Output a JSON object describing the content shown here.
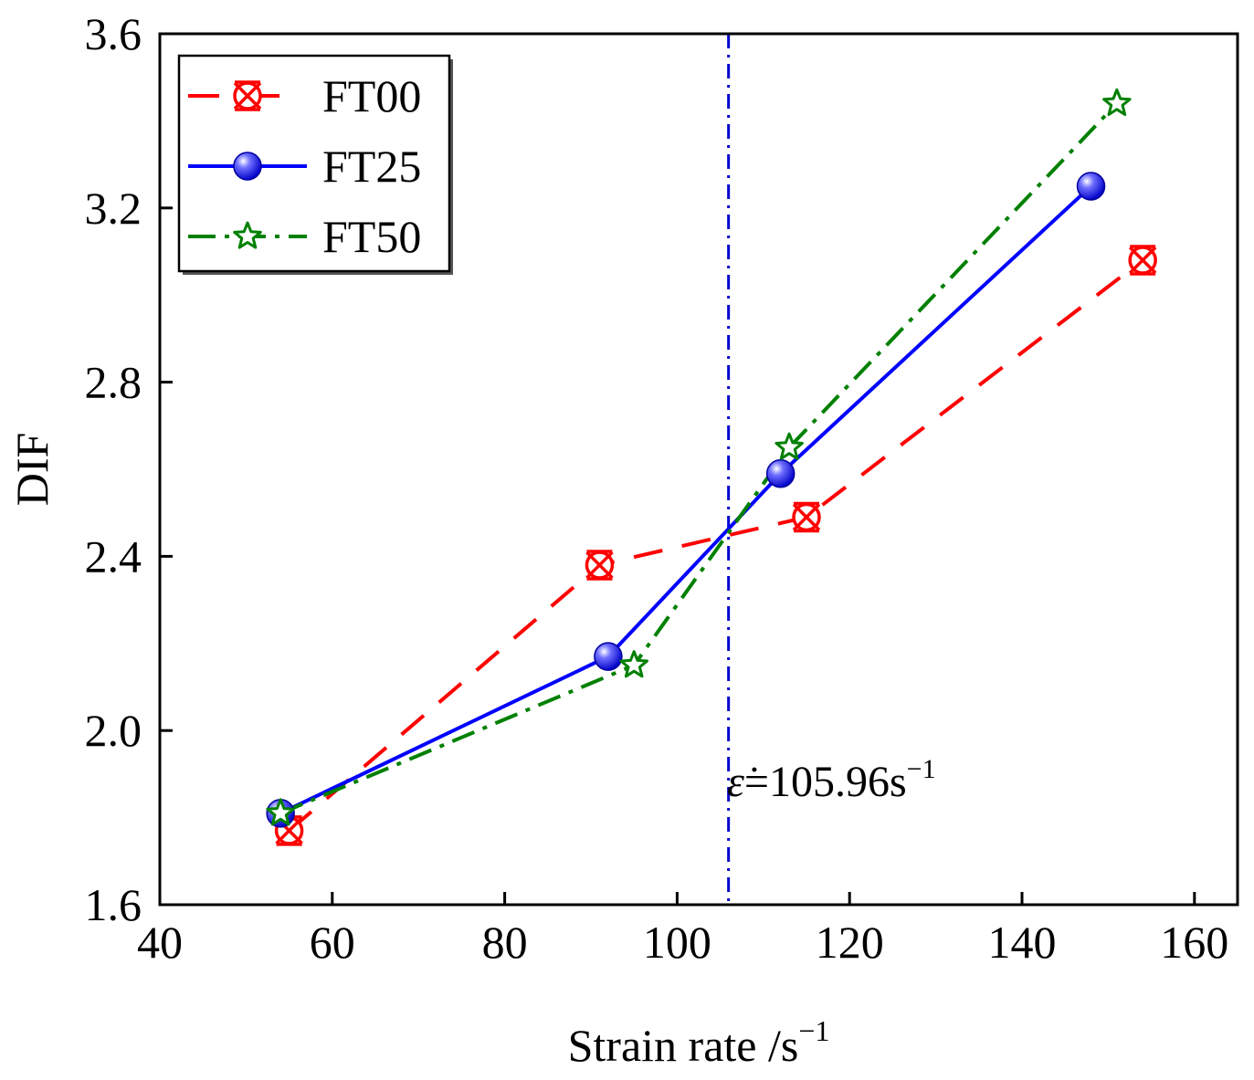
{
  "chart_data": {
    "type": "line",
    "xlabel": "Strain rate /s",
    "xlabel_sup": "−1",
    "ylabel": "DIF",
    "xlim": [
      40,
      165
    ],
    "ylim": [
      1.6,
      3.6
    ],
    "xticks": [
      40,
      60,
      80,
      100,
      120,
      140,
      160
    ],
    "yticks": [
      1.6,
      2.0,
      2.4,
      2.8,
      3.2,
      3.6
    ],
    "xtick_labels": [
      "40",
      "60",
      "80",
      "100",
      "120",
      "140",
      "160"
    ],
    "ytick_labels": [
      "1.6",
      "2.0",
      "2.4",
      "2.8",
      "3.2",
      "3.6"
    ],
    "grid": false,
    "legend_position": "top-left",
    "series": [
      {
        "name": "FT00",
        "color": "#ff0000",
        "line": "dashed",
        "marker": "circle-x",
        "x": [
          55,
          91,
          115,
          154
        ],
        "y": [
          1.77,
          2.38,
          2.49,
          3.08
        ]
      },
      {
        "name": "FT25",
        "color": "#0000ff",
        "line": "solid",
        "marker": "sphere",
        "x": [
          54,
          92,
          112,
          148
        ],
        "y": [
          1.81,
          2.17,
          2.59,
          3.25
        ]
      },
      {
        "name": "FT50",
        "color": "#008000",
        "line": "dash-dot",
        "marker": "star",
        "x": [
          54,
          95,
          113,
          151
        ],
        "y": [
          1.81,
          2.15,
          2.65,
          3.44
        ]
      }
    ],
    "reference_line": {
      "x": 105.96,
      "color": "#0000cd",
      "line": "dash-dot"
    },
    "annotation": {
      "symbol": "ε̇",
      "text": "=105.96s",
      "sup": "−1"
    }
  }
}
